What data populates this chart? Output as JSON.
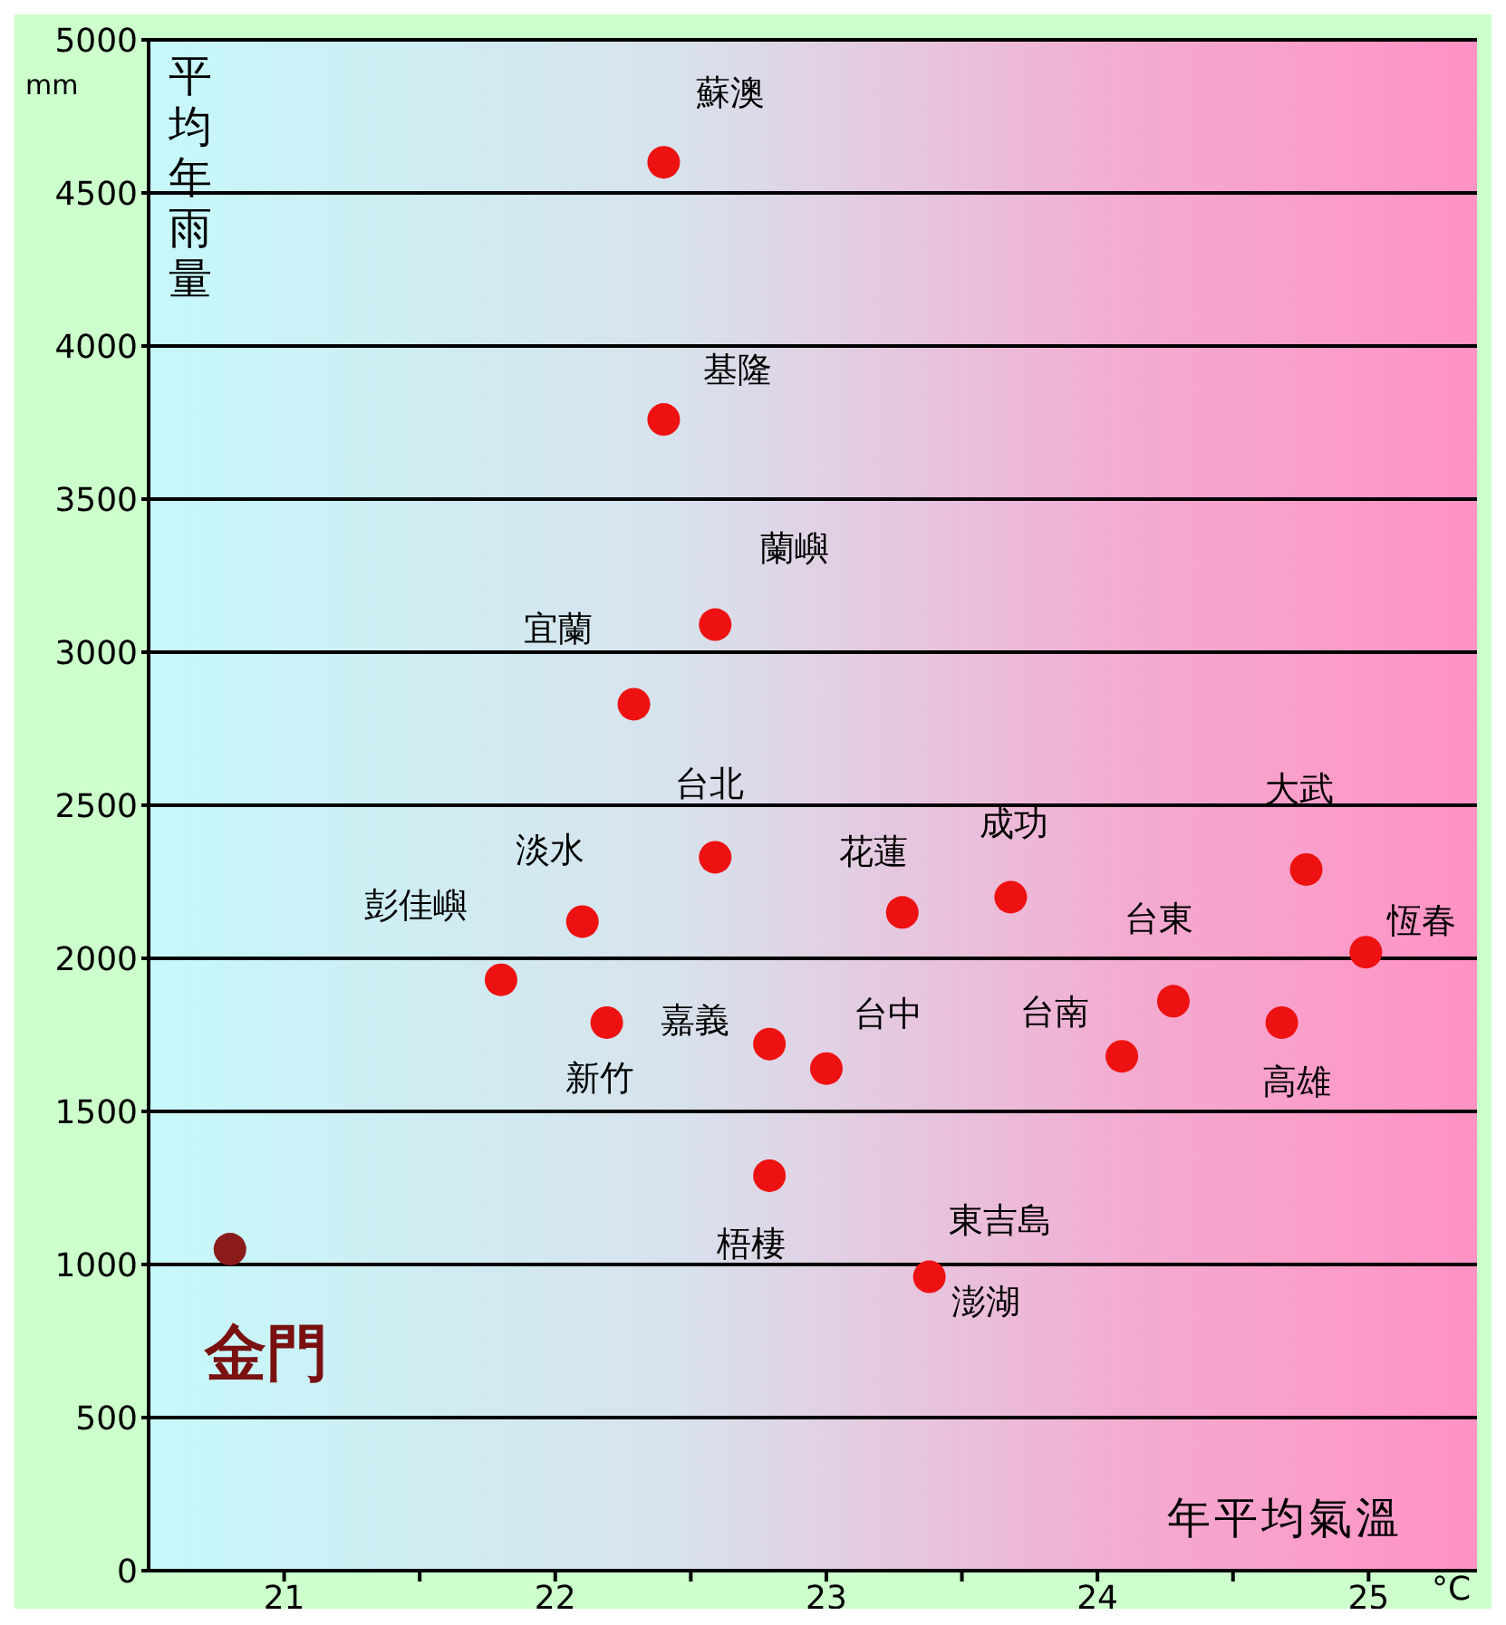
{
  "chart_data": {
    "type": "scatter",
    "xlabel": "年平均氣溫",
    "ylabel": "平均年雨量",
    "xlim": [
      20.5,
      25.4
    ],
    "ylim": [
      0,
      5000
    ],
    "xticks": [
      21,
      {
        "value": 21.5,
        "label": null
      },
      22,
      {
        "value": 22.5,
        "label": null
      },
      23,
      {
        "value": 23.5,
        "label": null
      },
      24,
      {
        "value": 24.5,
        "label": null
      },
      25
    ],
    "yticks": [
      0,
      500,
      1000,
      1500,
      2000,
      2500,
      3000,
      3500,
      4000,
      4500,
      5000
    ],
    "grid": "y",
    "marker": "circle",
    "series": [
      {
        "color": "#ee1111",
        "x": [
          22.4,
          22.4,
          22.59,
          22.29,
          22.59,
          22.1,
          21.8,
          22.19,
          22.79,
          23.0,
          22.79,
          23.38,
          23.28,
          23.68,
          24.09,
          24.28,
          24.77,
          24.68,
          24.99
        ],
        "values": [
          4600,
          3760,
          3090,
          2830,
          2330,
          2120,
          1930,
          1790,
          1720,
          1640,
          1290,
          960,
          2150,
          2200,
          1680,
          1860,
          2290,
          1790,
          2020
        ]
      },
      {
        "color": "#8b1a1a",
        "x": [
          20.8
        ],
        "values": [
          1050
        ]
      }
    ],
    "annotations": [
      {
        "text": "蘇澳",
        "x": 22.4,
        "y": 4600
      },
      {
        "text": "基隆",
        "x": 22.4,
        "y": 3760
      },
      {
        "text": "蘭嶼",
        "x": 22.59,
        "y": 3090
      },
      {
        "text": "宜蘭",
        "x": 22.29,
        "y": 2830
      },
      {
        "text": "台北",
        "x": 22.59,
        "y": 2330
      },
      {
        "text": "淡水",
        "x": 22.1,
        "y": 2120
      },
      {
        "text": "彭佳嶼",
        "x": 21.8,
        "y": 1930
      },
      {
        "text": "新竹",
        "x": 22.19,
        "y": 1790
      },
      {
        "text": "嘉義",
        "x": 22.79,
        "y": 1720
      },
      {
        "text": "台中",
        "x": 23.0,
        "y": 1640
      },
      {
        "text": "梧棲",
        "x": 22.79,
        "y": 1290
      },
      {
        "text": "澎湖",
        "x": 23.38,
        "y": 960
      },
      {
        "text": "東吉島",
        "x": 23.38,
        "y": 960
      },
      {
        "text": "花蓮",
        "x": 23.28,
        "y": 2150
      },
      {
        "text": "成功",
        "x": 23.68,
        "y": 2200
      },
      {
        "text": "台南",
        "x": 24.09,
        "y": 1680
      },
      {
        "text": "台東",
        "x": 24.28,
        "y": 1860
      },
      {
        "text": "大武",
        "x": 24.77,
        "y": 2290
      },
      {
        "text": "高雄",
        "x": 24.68,
        "y": 1790
      },
      {
        "text": "恆春",
        "x": 24.99,
        "y": 2020
      },
      {
        "text": "金門",
        "x": 20.8,
        "y": 1050
      },
      "mm",
      "°C"
    ]
  }
}
